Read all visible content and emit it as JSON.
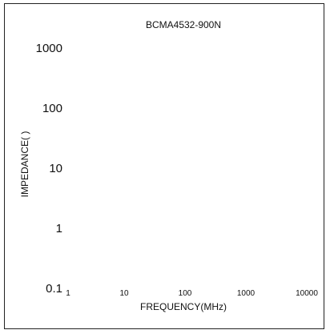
{
  "chart_data": {
    "type": "line",
    "title": "BCMA4532-900N",
    "xlabel": "FREQUENCY(MHz)",
    "ylabel": "IMPEDANCE( )",
    "xscale": "log",
    "yscale": "log",
    "xlim": [
      1,
      10000
    ],
    "ylim": [
      0.1,
      1000
    ],
    "xticks": [
      "1",
      "10",
      "100",
      "1000",
      "10000"
    ],
    "yticks": [
      "0.1",
      "1",
      "10",
      "100",
      "1000"
    ],
    "grid": false,
    "series": []
  }
}
